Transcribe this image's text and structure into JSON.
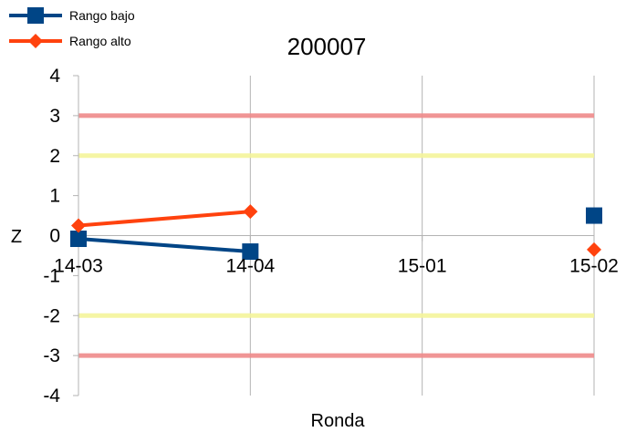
{
  "chart_data": {
    "type": "line",
    "title": "200007",
    "xlabel": "Ronda",
    "ylabel": "Z",
    "categories": [
      "14-03",
      "14-04",
      "15-01",
      "15-02"
    ],
    "ylim": [
      -4,
      4
    ],
    "yticks": [
      4,
      3,
      2,
      1,
      0,
      -1,
      -2,
      -3,
      -4
    ],
    "grid": "vertical",
    "legend_position": "top-left",
    "reference_lines": [
      {
        "value": 3,
        "color": "#ee8a8a"
      },
      {
        "value": 2,
        "color": "#f4f49a"
      },
      {
        "value": -2,
        "color": "#f4f49a"
      },
      {
        "value": -3,
        "color": "#ee8a8a"
      }
    ],
    "series": [
      {
        "name": "Rango bajo",
        "color": "#004586",
        "marker": "square",
        "values": [
          -0.08,
          -0.4,
          null,
          0.5
        ]
      },
      {
        "name": "Rango alto",
        "color": "#ff420e",
        "marker": "diamond",
        "values": [
          0.25,
          0.6,
          null,
          -0.35
        ]
      }
    ]
  }
}
